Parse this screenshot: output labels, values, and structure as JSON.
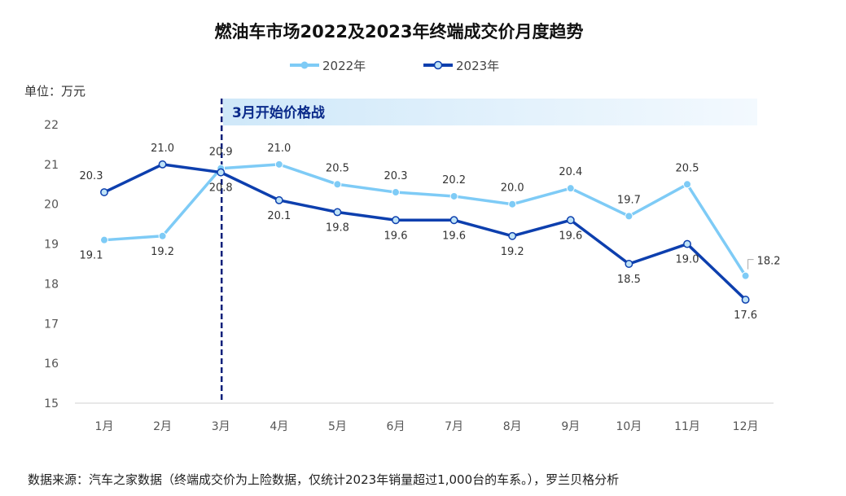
{
  "chart_data": {
    "type": "line",
    "title": "燃油车市场2022及2023年终端成交价月度趋势",
    "unit_label": "单位：万元",
    "categories": [
      "1月",
      "2月",
      "3月",
      "4月",
      "5月",
      "6月",
      "7月",
      "8月",
      "9月",
      "10月",
      "11月",
      "12月"
    ],
    "ylim": [
      15,
      22
    ],
    "yticks": [
      15,
      16,
      17,
      18,
      19,
      20,
      21,
      22
    ],
    "grid": false,
    "legend_position": "top-center",
    "series": [
      {
        "name": "2022年",
        "color": "#7ecbf6",
        "values": [
          19.1,
          19.2,
          20.9,
          21.0,
          20.5,
          20.3,
          20.2,
          20.0,
          20.4,
          19.7,
          20.5,
          18.2
        ],
        "labels": [
          "19.1",
          "19.2",
          "20.9",
          "21.0",
          "20.5",
          "20.3",
          "20.2",
          "20.0",
          "20.4",
          "19.7",
          "20.5",
          "18.2"
        ]
      },
      {
        "name": "2023年",
        "color": "#0d3fae",
        "values": [
          20.3,
          21.0,
          20.8,
          20.1,
          19.8,
          19.6,
          19.6,
          19.2,
          19.6,
          18.5,
          19.0,
          17.6
        ],
        "labels": [
          "20.3",
          "21.0",
          "20.8",
          "20.1",
          "19.8",
          "19.6",
          "19.6",
          "19.2",
          "19.6",
          "18.5",
          "19.0",
          "17.6"
        ]
      }
    ],
    "annotation": {
      "text": "3月开始价格战",
      "category": "3月"
    }
  },
  "source_note": "数据来源：汽车之家数据（终端成交价为上险数据，仅统计2023年销量超过1,000台的车系。），罗兰贝格分析"
}
